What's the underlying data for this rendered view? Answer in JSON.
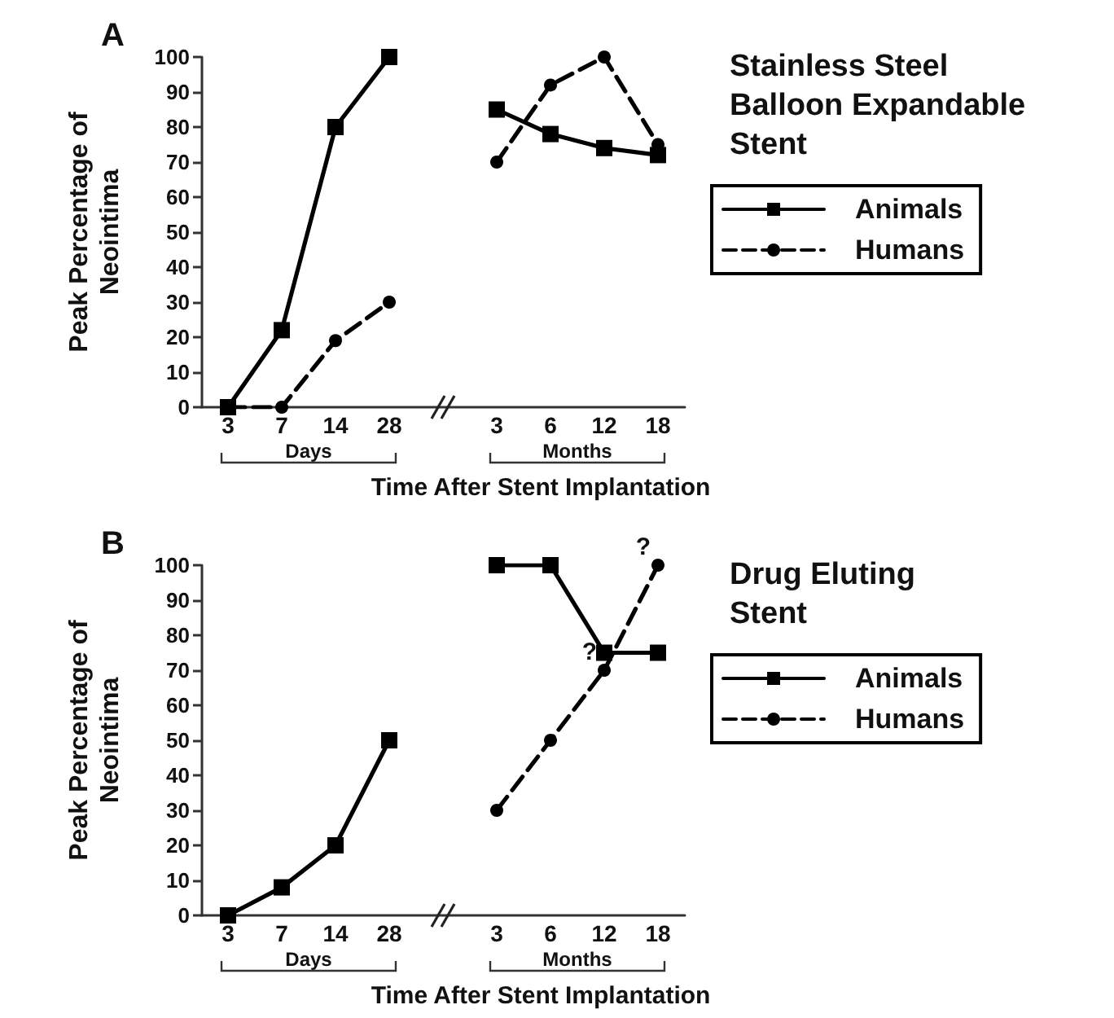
{
  "chart_data": [
    {
      "type": "line",
      "legend_title": "Stainless Steel\nBalloon Expandable\nStent",
      "xlabel": "Time After Stent Implantation",
      "ylabel": "Peak Percentage of\nNeointima",
      "categories": [
        "3",
        "7",
        "14",
        "28",
        null,
        "3",
        "6",
        "12",
        "18"
      ],
      "series": [
        {
          "name": "Animals",
          "color": "#000000",
          "marker": "square",
          "line_style": "solid",
          "values": [
            0,
            22,
            80,
            100,
            null,
            85,
            78,
            74,
            72
          ]
        },
        {
          "name": "Humans",
          "color": "#000000",
          "marker": "circle",
          "line_style": "dashed",
          "values": [
            0,
            0,
            19,
            30,
            null,
            70,
            92,
            100,
            75
          ]
        }
      ],
      "ylim": [
        0,
        100
      ],
      "yticks": [
        0,
        10,
        20,
        30,
        40,
        50,
        60,
        70,
        80,
        90,
        100
      ],
      "grid": false,
      "legend": "right",
      "annotations": [
        "A",
        "Days",
        "Months"
      ]
    },
    {
      "type": "line",
      "legend_title": "Drug Eluting\nStent",
      "xlabel": "Time After Stent Implantation",
      "ylabel": "Peak Percentage of\nNeointima",
      "categories": [
        "3",
        "7",
        "14",
        "28",
        null,
        "3",
        "6",
        "12",
        "18"
      ],
      "series": [
        {
          "name": "Animals",
          "color": "#000000",
          "marker": "square",
          "line_style": "solid",
          "values": [
            0,
            8,
            20,
            50,
            null,
            100,
            100,
            75,
            75
          ]
        },
        {
          "name": "Humans",
          "color": "#000000",
          "marker": "circle",
          "line_style": "dashed",
          "values": [
            null,
            null,
            null,
            null,
            null,
            30,
            50,
            70,
            100
          ]
        }
      ],
      "ylim": [
        0,
        100
      ],
      "yticks": [
        0,
        10,
        20,
        30,
        40,
        50,
        60,
        70,
        80,
        90,
        100
      ],
      "grid": false,
      "legend": "right",
      "annotations": [
        "B",
        "Days",
        "Months",
        {
          "text": "?",
          "x": "12",
          "y": 70
        },
        {
          "text": "?",
          "x": "18",
          "y": 100
        }
      ]
    }
  ]
}
